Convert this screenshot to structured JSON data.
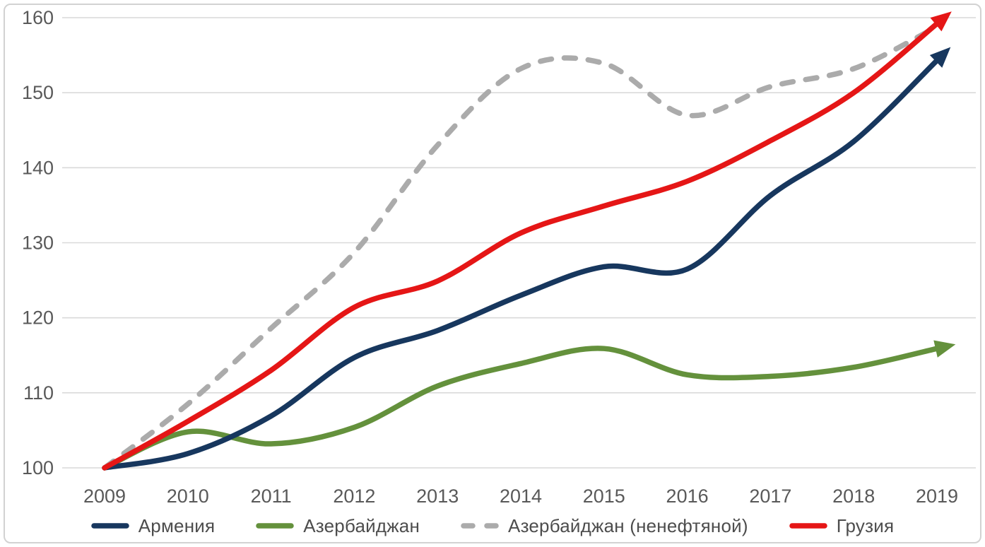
{
  "chart_data": {
    "type": "line",
    "title": "",
    "x": [
      2009,
      2010,
      2011,
      2012,
      2013,
      2014,
      2015,
      2016,
      2017,
      2018,
      2019
    ],
    "xlabel": "",
    "ylabel": "",
    "ylim": [
      100,
      160
    ],
    "yticks": [
      100,
      110,
      120,
      130,
      140,
      150,
      160
    ],
    "grid": "horizontal",
    "legend_position": "bottom",
    "colors": {
      "armenia": "#17375E",
      "azerbaijan": "#64913C",
      "azerbaijan_nonoil": "#ABABAB",
      "georgia": "#E51616",
      "axis_text": "#595959",
      "gridline": "#D9D9D9"
    },
    "series": [
      {
        "name": "Армения",
        "color": "#17375E",
        "style": "solid",
        "arrow": true,
        "values": [
          100,
          101.9,
          106.9,
          114.7,
          118.3,
          123.0,
          126.8,
          126.5,
          136.3,
          143.5,
          154.3
        ]
      },
      {
        "name": "Азербайджан",
        "color": "#64913C",
        "style": "solid",
        "arrow": true,
        "values": [
          100,
          104.8,
          103.2,
          105.4,
          110.9,
          113.9,
          115.9,
          112.4,
          112.2,
          113.4,
          115.9
        ]
      },
      {
        "name": "Азербайджан (ненефтяной)",
        "color": "#ABABAB",
        "style": "dashed",
        "arrow": false,
        "values": [
          100,
          108.5,
          118.6,
          128.7,
          143.0,
          153.2,
          153.9,
          147.0,
          150.8,
          153.2,
          158.8
        ]
      },
      {
        "name": "Грузия",
        "color": "#E51616",
        "style": "solid",
        "arrow": true,
        "values": [
          100,
          106.2,
          113.0,
          121.4,
          124.9,
          131.3,
          134.9,
          138.2,
          143.6,
          150.0,
          159.2
        ]
      }
    ]
  }
}
